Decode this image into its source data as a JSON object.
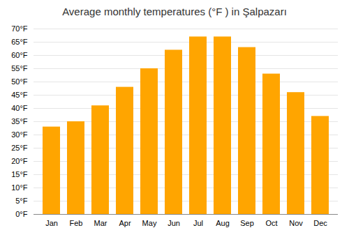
{
  "chart_data": {
    "type": "bar",
    "title": "Average monthly temperatures (°F ) in Şalpazarı",
    "categories": [
      "Jan",
      "Feb",
      "Mar",
      "Apr",
      "May",
      "Jun",
      "Jul",
      "Aug",
      "Sep",
      "Oct",
      "Nov",
      "Dec"
    ],
    "values": [
      33,
      35,
      41,
      48,
      55,
      62,
      67,
      67,
      63,
      53,
      46,
      37
    ],
    "color": "#FFA500",
    "ylim": [
      0,
      70
    ],
    "yticks": [
      {
        "value": 0,
        "label": "0°F"
      },
      {
        "value": 5,
        "label": "5°F"
      },
      {
        "value": 10,
        "label": "10°F"
      },
      {
        "value": 15,
        "label": "15°F"
      },
      {
        "value": 20,
        "label": "20°F"
      },
      {
        "value": 25,
        "label": "25°F"
      },
      {
        "value": 30,
        "label": "30°F"
      },
      {
        "value": 35,
        "label": "35°F"
      },
      {
        "value": 40,
        "label": "40°F"
      },
      {
        "value": 45,
        "label": "45°F"
      },
      {
        "value": 50,
        "label": "50°F"
      },
      {
        "value": 55,
        "label": "55°F"
      },
      {
        "value": 60,
        "label": "60°F"
      },
      {
        "value": 65,
        "label": "65°F"
      },
      {
        "value": 70,
        "label": "70°F"
      }
    ],
    "grid": true
  }
}
